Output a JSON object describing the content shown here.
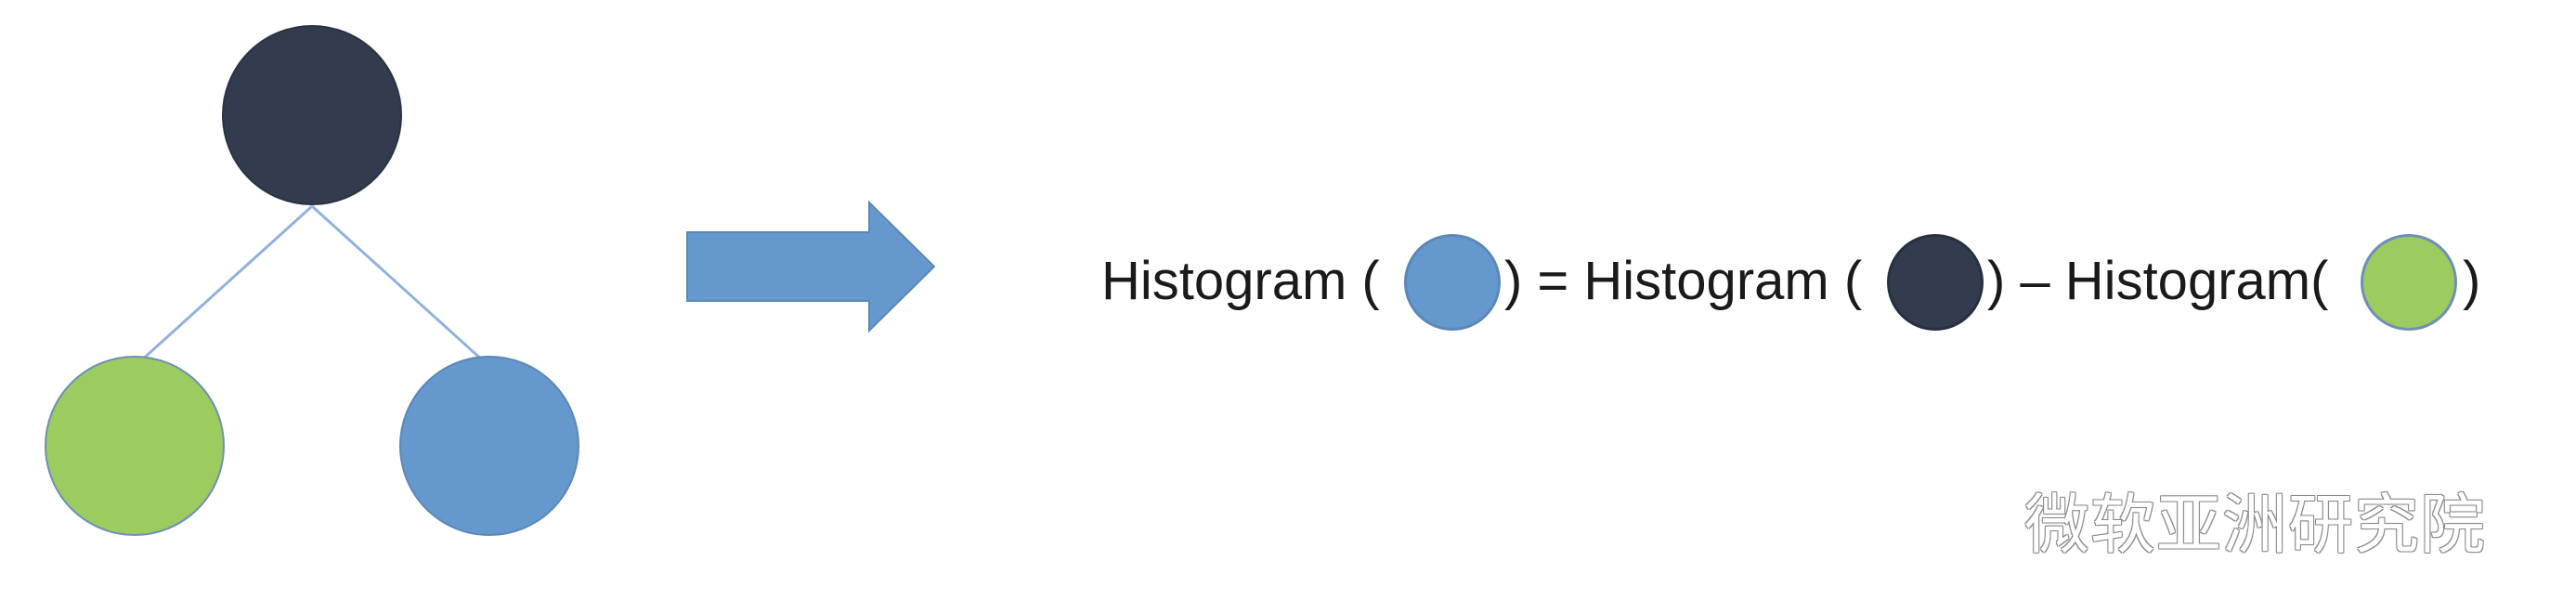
{
  "colors": {
    "dark": "#323c4e",
    "green": "#9ccb5f",
    "blue": "#6598cc",
    "edge": "#8fb3de",
    "arrow": "#6598cc"
  },
  "tree": {
    "root": {
      "icon": "dark-circle"
    },
    "children": [
      {
        "icon": "green-circle"
      },
      {
        "icon": "blue-circle"
      }
    ]
  },
  "equation": {
    "lhs_label": "Histogram (",
    "lhs_close": ") = Histogram (",
    "mid_close": ") – Histogram(",
    "end_close": ")"
  },
  "watermark": "微软亚洲研究院"
}
